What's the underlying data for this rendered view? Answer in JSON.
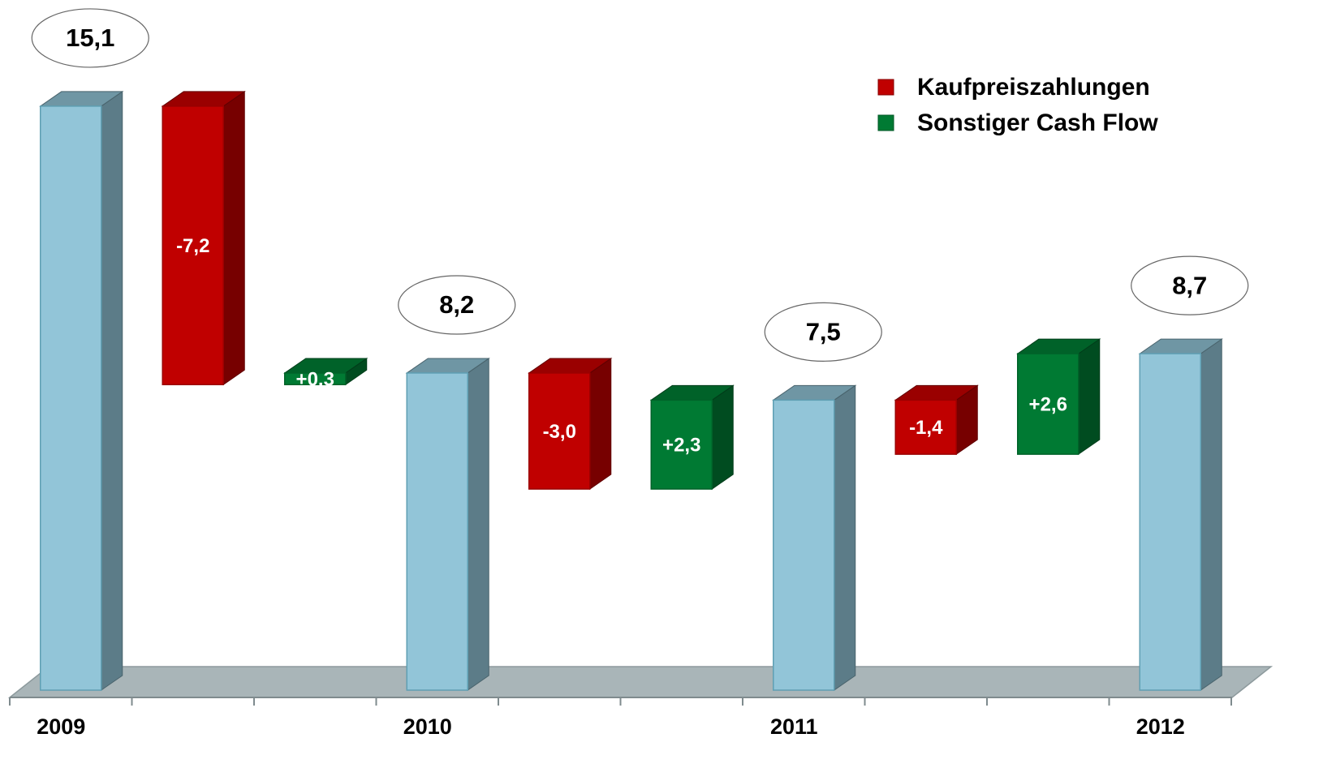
{
  "chart_data": {
    "type": "waterfall",
    "categories": [
      "2009",
      null,
      null,
      "2010",
      null,
      null,
      "2011",
      null,
      null,
      "2012"
    ],
    "values": [
      15.1,
      -7.2,
      0.3,
      8.2,
      -3.0,
      2.3,
      7.5,
      -1.4,
      2.6,
      8.7
    ],
    "value_labels": [
      "15,1",
      "-7,2",
      "+0.3",
      "8,2",
      "-3,0",
      "+2,3",
      "7,5",
      "-1,4",
      "+2,6",
      "8,7"
    ],
    "total_color": "#92c5d8",
    "series": [
      {
        "name": "Kaufpreiszahlungen",
        "color": "#c00000"
      },
      {
        "name": "Sonstiger Cash Flow",
        "color": "#007a33"
      }
    ],
    "ylim": [
      0,
      16
    ],
    "legend": "upper right"
  }
}
